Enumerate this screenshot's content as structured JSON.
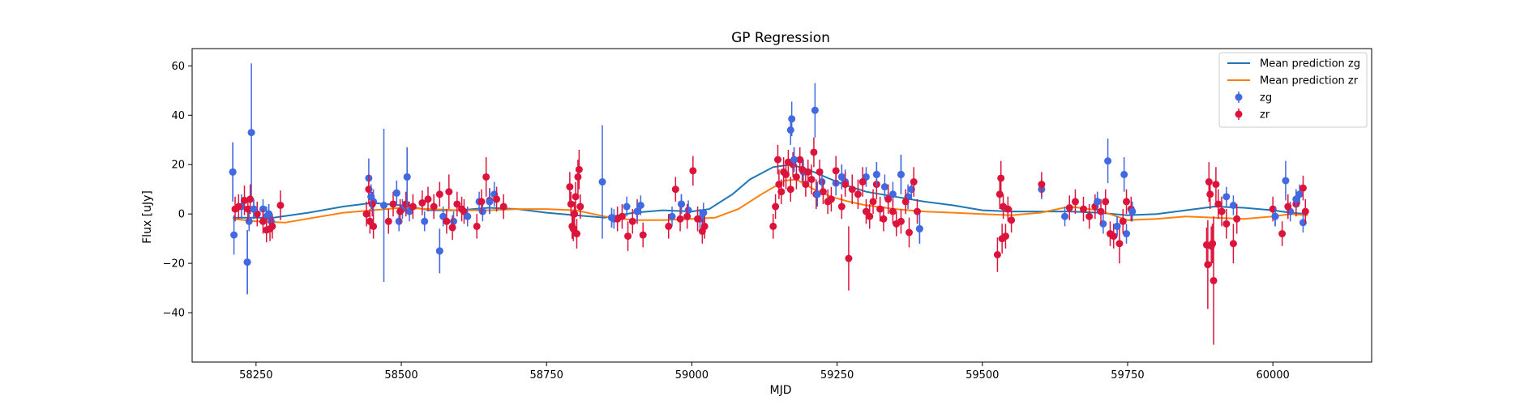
{
  "chart_data": {
    "type": "scatter",
    "title": "GP Regression",
    "xlabel": "MJD",
    "ylabel": "Flux [uJy]",
    "xlim": [
      58140,
      60170
    ],
    "ylim": [
      -60,
      67
    ],
    "xticks": [
      58250,
      58500,
      58750,
      59000,
      59250,
      59500,
      59750,
      60000
    ],
    "yticks": [
      -40,
      -20,
      0,
      20,
      40,
      60
    ],
    "grid": false,
    "legend": {
      "placement": "top-right",
      "entries": [
        "Mean prediction zg",
        "Mean prediction zr",
        "zg",
        "zr"
      ]
    },
    "colors": {
      "mean_zg": "#1f77b4",
      "mean_zr": "#ff7f0e",
      "zg": "#4169e1",
      "zr": "#dc143c"
    },
    "lines": [
      {
        "name": "Mean prediction zg",
        "x": [
          58210,
          58280,
          58340,
          58400,
          58450,
          58500,
          58550,
          58600,
          58650,
          58700,
          58750,
          58800,
          58850,
          58900,
          58950,
          59000,
          59030,
          59070,
          59100,
          59140,
          59170,
          59200,
          59230,
          59260,
          59300,
          59350,
          59400,
          59450,
          59500,
          59550,
          59600,
          59650,
          59700,
          59750,
          59800,
          59850,
          59900,
          59950,
          60000,
          60030,
          60060
        ],
        "y": [
          -1.5,
          -1.5,
          0.5,
          3,
          4.5,
          3.5,
          1.5,
          1.5,
          2.5,
          2,
          0.5,
          -0.5,
          -1.5,
          0.5,
          1.5,
          1,
          2,
          8,
          14,
          19,
          20,
          18,
          15,
          12,
          9,
          7,
          5,
          3.5,
          1.5,
          1,
          1,
          1,
          0.5,
          -0.5,
          0,
          1.5,
          3,
          2.5,
          1.5,
          0.5,
          0
        ]
      },
      {
        "name": "Mean prediction zr",
        "x": [
          58210,
          58250,
          58300,
          58350,
          58400,
          58450,
          58500,
          58550,
          58600,
          58650,
          58700,
          58750,
          58800,
          58850,
          58900,
          58950,
          59000,
          59040,
          59080,
          59120,
          59160,
          59180,
          59210,
          59240,
          59270,
          59300,
          59350,
          59400,
          59450,
          59500,
          59550,
          59600,
          59650,
          59700,
          59750,
          59800,
          59850,
          59900,
          59950,
          60000,
          60030,
          60060
        ],
        "y": [
          -2,
          -3,
          -3.5,
          -1.5,
          0.5,
          1.5,
          2.5,
          2,
          1.5,
          1.5,
          2,
          2,
          1.5,
          -1,
          -2.5,
          -2.5,
          -2,
          -1.5,
          2,
          8,
          13.5,
          14,
          10,
          7,
          5,
          3.5,
          2,
          1,
          0.5,
          0,
          -0.5,
          0.5,
          3,
          1.5,
          -2.5,
          -2,
          -1,
          -1.5,
          -2,
          -1,
          0,
          -0.5
        ]
      }
    ],
    "series": [
      {
        "name": "zg",
        "points": [
          [
            58210,
            17,
            12
          ],
          [
            58212,
            -8.5,
            8
          ],
          [
            58225,
            3,
            5
          ],
          [
            58235,
            -19.5,
            13
          ],
          [
            58238,
            -3,
            4
          ],
          [
            58242,
            33,
            28
          ],
          [
            58246,
            2,
            4
          ],
          [
            58262,
            2,
            4
          ],
          [
            58268,
            -1,
            4
          ],
          [
            58272,
            0,
            4
          ],
          [
            58276,
            -3,
            4
          ],
          [
            58444,
            14.5,
            8
          ],
          [
            58448,
            7,
            5
          ],
          [
            58452,
            5,
            5
          ],
          [
            58470,
            3.5,
            31
          ],
          [
            58492,
            8.5,
            5
          ],
          [
            58496,
            -3,
            4
          ],
          [
            58502,
            2,
            4
          ],
          [
            58510,
            15,
            12
          ],
          [
            58514,
            1,
            4
          ],
          [
            58540,
            -3,
            4
          ],
          [
            58566,
            -15,
            9
          ],
          [
            58572,
            -1,
            4
          ],
          [
            58590,
            -3,
            4
          ],
          [
            58614,
            -1,
            4
          ],
          [
            58634,
            5,
            4
          ],
          [
            58640,
            1,
            4
          ],
          [
            58652,
            5,
            5
          ],
          [
            58660,
            8,
            5
          ],
          [
            58846,
            13,
            23
          ],
          [
            58862,
            -1.5,
            4
          ],
          [
            58866,
            -2,
            4
          ],
          [
            58888,
            3,
            4
          ],
          [
            58906,
            1,
            4
          ],
          [
            58912,
            3.5,
            4
          ],
          [
            58966,
            -1,
            4
          ],
          [
            58982,
            4,
            4
          ],
          [
            58994,
            1.5,
            4
          ],
          [
            59014,
            -2,
            4
          ],
          [
            59020,
            0.5,
            4
          ],
          [
            59172,
            38.5,
            7
          ],
          [
            59170,
            34,
            6
          ],
          [
            59176,
            22,
            5
          ],
          [
            59192,
            17,
            5
          ],
          [
            59212,
            42,
            11
          ],
          [
            59216,
            8,
            5
          ],
          [
            59224,
            13,
            5
          ],
          [
            59248,
            12.5,
            5
          ],
          [
            59258,
            15,
            5
          ],
          [
            59264,
            13,
            5
          ],
          [
            59300,
            15,
            4
          ],
          [
            59318,
            16,
            5
          ],
          [
            59332,
            11,
            5
          ],
          [
            59346,
            8,
            5
          ],
          [
            59360,
            16,
            8
          ],
          [
            59372,
            7,
            5
          ],
          [
            59378,
            10,
            4
          ],
          [
            59392,
            -6,
            6
          ],
          [
            59602,
            10,
            4
          ],
          [
            59642,
            -1,
            4
          ],
          [
            59698,
            5,
            4
          ],
          [
            59708,
            -4,
            4
          ],
          [
            59716,
            21.5,
            9
          ],
          [
            59732,
            -5,
            4
          ],
          [
            59744,
            16,
            7
          ],
          [
            59748,
            -8,
            4
          ],
          [
            59758,
            1,
            4
          ],
          [
            59920,
            7,
            4
          ],
          [
            59932,
            3.5,
            4
          ],
          [
            60004,
            -1,
            4
          ],
          [
            60022,
            13.5,
            8
          ],
          [
            60030,
            1,
            4
          ],
          [
            60040,
            6,
            4
          ],
          [
            60046,
            8,
            4
          ],
          [
            60052,
            -3.5,
            4
          ]
        ]
      },
      {
        "name": "zr",
        "points": [
          [
            58214,
            2,
            5
          ],
          [
            58220,
            3,
            5
          ],
          [
            58230,
            5.5,
            6
          ],
          [
            58236,
            2,
            5
          ],
          [
            58240,
            6,
            6
          ],
          [
            58252,
            0,
            5
          ],
          [
            58262,
            -3,
            5
          ],
          [
            58268,
            -6.5,
            5
          ],
          [
            58274,
            -6,
            5
          ],
          [
            58278,
            -5,
            5
          ],
          [
            58292,
            3.5,
            6
          ],
          [
            58440,
            0,
            5
          ],
          [
            58444,
            10,
            6
          ],
          [
            58446,
            -3,
            5
          ],
          [
            58450,
            4,
            5
          ],
          [
            58452,
            -5,
            5
          ],
          [
            58478,
            -3,
            5
          ],
          [
            58486,
            4,
            5
          ],
          [
            58498,
            1,
            5
          ],
          [
            58508,
            4,
            5
          ],
          [
            58520,
            3,
            5
          ],
          [
            58536,
            4.5,
            5
          ],
          [
            58546,
            6,
            5
          ],
          [
            58556,
            3,
            5
          ],
          [
            58566,
            8,
            5
          ],
          [
            58578,
            -3,
            5
          ],
          [
            58582,
            9,
            7
          ],
          [
            58588,
            -5.5,
            5
          ],
          [
            58596,
            4,
            5
          ],
          [
            58604,
            2,
            5
          ],
          [
            58608,
            1,
            5
          ],
          [
            58630,
            -5,
            5
          ],
          [
            58638,
            5,
            5
          ],
          [
            58646,
            15,
            8
          ],
          [
            58652,
            5.5,
            5
          ],
          [
            58664,
            6,
            5
          ],
          [
            58676,
            3,
            5
          ],
          [
            58790,
            11,
            6
          ],
          [
            58792,
            4,
            5
          ],
          [
            58794,
            -5,
            5
          ],
          [
            58796,
            -6,
            5
          ],
          [
            58798,
            0,
            5
          ],
          [
            58800,
            7,
            6
          ],
          [
            58802,
            -8,
            6
          ],
          [
            58804,
            15,
            7
          ],
          [
            58806,
            18,
            8
          ],
          [
            58808,
            3,
            5
          ],
          [
            58872,
            -2,
            5
          ],
          [
            58880,
            -1,
            5
          ],
          [
            58890,
            -9,
            6
          ],
          [
            58898,
            -3,
            5
          ],
          [
            58906,
            1,
            5
          ],
          [
            58916,
            -8.5,
            5
          ],
          [
            58960,
            -5,
            5
          ],
          [
            58972,
            10,
            5
          ],
          [
            58980,
            -2,
            5
          ],
          [
            58992,
            -1,
            5
          ],
          [
            59002,
            17.5,
            6
          ],
          [
            59010,
            -2,
            5
          ],
          [
            59018,
            -7,
            5
          ],
          [
            59022,
            -5,
            5
          ],
          [
            59140,
            -5,
            5
          ],
          [
            59144,
            3,
            5
          ],
          [
            59148,
            22,
            6
          ],
          [
            59150,
            12,
            6
          ],
          [
            59154,
            9,
            5
          ],
          [
            59158,
            17,
            6
          ],
          [
            59162,
            16,
            6
          ],
          [
            59166,
            21,
            5
          ],
          [
            59170,
            10,
            5
          ],
          [
            59174,
            20,
            5
          ],
          [
            59180,
            15,
            5
          ],
          [
            59186,
            22,
            5
          ],
          [
            59190,
            18,
            5
          ],
          [
            59196,
            12,
            5
          ],
          [
            59200,
            17,
            5
          ],
          [
            59206,
            14,
            6
          ],
          [
            59210,
            25,
            6
          ],
          [
            59214,
            8,
            6
          ],
          [
            59220,
            17,
            5
          ],
          [
            59226,
            9,
            5
          ],
          [
            59234,
            5,
            5
          ],
          [
            59240,
            6,
            5
          ],
          [
            59248,
            17.5,
            6
          ],
          [
            59258,
            3,
            5
          ],
          [
            59264,
            12,
            5
          ],
          [
            59270,
            -18,
            13
          ],
          [
            59276,
            10,
            6
          ],
          [
            59286,
            8,
            6
          ],
          [
            59294,
            13,
            6
          ],
          [
            59300,
            1,
            5
          ],
          [
            59306,
            -1,
            5
          ],
          [
            59312,
            5,
            5
          ],
          [
            59318,
            12,
            6
          ],
          [
            59324,
            2,
            5
          ],
          [
            59330,
            -2,
            5
          ],
          [
            59338,
            6,
            6
          ],
          [
            59346,
            1,
            5
          ],
          [
            59352,
            -4,
            5
          ],
          [
            59360,
            -3,
            5
          ],
          [
            59368,
            5,
            5
          ],
          [
            59374,
            -7.5,
            6
          ],
          [
            59382,
            13,
            6
          ],
          [
            59388,
            1,
            5
          ],
          [
            59526,
            -16.5,
            7
          ],
          [
            59530,
            8,
            6
          ],
          [
            59532,
            14.5,
            7
          ],
          [
            59534,
            -10,
            6
          ],
          [
            59536,
            3,
            5
          ],
          [
            59540,
            -9,
            5
          ],
          [
            59544,
            2,
            5
          ],
          [
            59550,
            -2.5,
            5
          ],
          [
            59602,
            12,
            5
          ],
          [
            59650,
            2.5,
            5
          ],
          [
            59660,
            5,
            5
          ],
          [
            59674,
            2,
            5
          ],
          [
            59684,
            -1,
            5
          ],
          [
            59694,
            3,
            5
          ],
          [
            59704,
            1,
            5
          ],
          [
            59712,
            5,
            5
          ],
          [
            59720,
            -8,
            5
          ],
          [
            59726,
            -9,
            5
          ],
          [
            59736,
            -12,
            8
          ],
          [
            59742,
            -3,
            5
          ],
          [
            59748,
            5,
            5
          ],
          [
            59756,
            2,
            5
          ],
          [
            59886,
            -12.5,
            7
          ],
          [
            59888,
            -20.5,
            18
          ],
          [
            59890,
            13,
            8
          ],
          [
            59892,
            8,
            6
          ],
          [
            59894,
            -13,
            8
          ],
          [
            59896,
            -12,
            8
          ],
          [
            59898,
            -27,
            26
          ],
          [
            59902,
            12,
            7
          ],
          [
            59906,
            4,
            6
          ],
          [
            59912,
            1,
            6
          ],
          [
            59920,
            -4,
            6
          ],
          [
            59932,
            -12,
            8
          ],
          [
            59938,
            -2,
            6
          ],
          [
            60000,
            2,
            5
          ],
          [
            60016,
            -8,
            5
          ],
          [
            60026,
            3,
            5
          ],
          [
            60040,
            4,
            5
          ],
          [
            60052,
            10.5,
            5
          ],
          [
            60056,
            1,
            5
          ]
        ]
      }
    ]
  }
}
